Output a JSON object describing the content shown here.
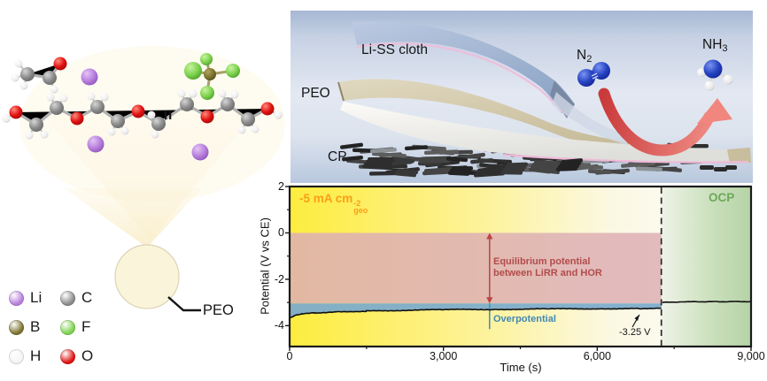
{
  "left_panel": {
    "peo_label": "PEO",
    "repeat_unit_mark": "II",
    "legend": {
      "items": [
        {
          "symbol": "Li",
          "color": "#b87fdc"
        },
        {
          "symbol": "C",
          "color": "#8b8b8b"
        },
        {
          "symbol": "B",
          "color": "#7d7430"
        },
        {
          "symbol": "F",
          "color": "#7ed34f"
        },
        {
          "symbol": "H",
          "color": "#f4f4f4"
        },
        {
          "symbol": "O",
          "color": "#e01212"
        }
      ]
    }
  },
  "schematic": {
    "labels": {
      "electrode_top": "Li-SS cloth",
      "electrolyte": "PEO",
      "substrate": "CP"
    },
    "molecules": {
      "reactant": {
        "formula_base": "N",
        "formula_sub": "2"
      },
      "product": {
        "formula_base": "NH",
        "formula_sub": "3"
      }
    },
    "arrow_color": "#e06a5f"
  },
  "chart_data": {
    "type": "line",
    "title": "",
    "xlabel": "Time (s)",
    "ylabel": "Potential (V vs CE)",
    "xlim": [
      0,
      9000
    ],
    "ylim": [
      -4.9,
      2
    ],
    "x_ticks": [
      0,
      3000,
      6000,
      9000
    ],
    "x_tick_labels": [
      "0",
      "3,000",
      "6,000",
      "9,000"
    ],
    "x_minor_ticks": [
      1500,
      4500,
      7500
    ],
    "y_ticks": [
      2,
      0,
      -2,
      -4
    ],
    "y_minor_ticks": [
      1,
      -1,
      -3
    ],
    "grid": false,
    "series": [
      {
        "name": "galvanostatic potential at -5 mA cm-2",
        "color": "#101010",
        "points": [
          [
            0,
            -3.66
          ],
          [
            100,
            -3.57
          ],
          [
            250,
            -3.5
          ],
          [
            500,
            -3.45
          ],
          [
            900,
            -3.41
          ],
          [
            1500,
            -3.37
          ],
          [
            2200,
            -3.34
          ],
          [
            3000,
            -3.31
          ],
          [
            4000,
            -3.3
          ],
          [
            5000,
            -3.28
          ],
          [
            6000,
            -3.27
          ],
          [
            6800,
            -3.26
          ],
          [
            7250,
            -3.25
          ]
        ]
      },
      {
        "name": "open circuit potential",
        "color": "#101010",
        "points": [
          [
            7270,
            -3.0
          ],
          [
            7700,
            -2.97
          ],
          [
            9000,
            -2.96
          ]
        ]
      }
    ],
    "regions": [
      {
        "name": "equilibrium potential between LiRR and HOR",
        "color": "rgba(221,175,180,0.85)",
        "x": [
          0,
          7250
        ],
        "y_top": 0,
        "y_bottom": -3.04
      },
      {
        "name": "overpotential",
        "color": "rgba(125,172,203,0.95)",
        "x": [
          0,
          7250
        ],
        "y_top": -3.04,
        "y_bottom": "curve"
      }
    ],
    "vline_x": 7250,
    "background": {
      "yellow": "#fdec3e",
      "pale": "#fbf8e6",
      "green": "#b5d3a6"
    },
    "annotations": {
      "current_density": {
        "prefix": "-5 mA cm",
        "sup": "-2",
        "sub": "geo",
        "color": "#fb9e18"
      },
      "ocp": {
        "text": "OCP",
        "color": "#6fa85a"
      },
      "equilibrium": {
        "line1": "Equilibrium potential",
        "line2": "between LiRR and HOR",
        "color": "#b24c4c",
        "arrow_x": 3900
      },
      "overpotential": {
        "text": "Overpotential",
        "color": "#4288b4",
        "line_x": 3900,
        "line_bottom": -4.15
      },
      "final_potential": {
        "text": "-3.25 V",
        "value": -3.25
      }
    }
  }
}
